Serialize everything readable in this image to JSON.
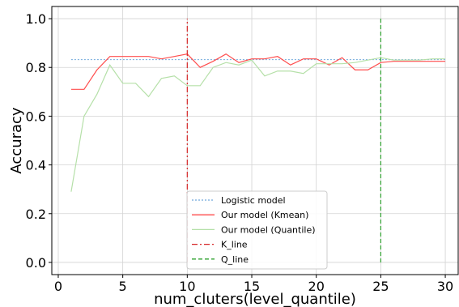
{
  "chart_data": {
    "type": "line",
    "xlabel": "num_cluters(level_quantile)",
    "ylabel": "Accuracy",
    "xlim": [
      -0.5,
      31
    ],
    "ylim": [
      -0.05,
      1.05
    ],
    "xticks": [
      0,
      5,
      10,
      15,
      20,
      25,
      30
    ],
    "yticks": [
      0.0,
      0.2,
      0.4,
      0.6,
      0.8,
      1.0
    ],
    "ytick_labels": [
      "0.0",
      "0.2",
      "0.4",
      "0.6",
      "0.8",
      "1.0"
    ],
    "grid": true,
    "legend_position": "lower center",
    "series": [
      {
        "name": "Logistic model",
        "color": "#6fa8dc",
        "style": "dotted",
        "x": [
          1,
          30
        ],
        "y": [
          0.832,
          0.832
        ]
      },
      {
        "name": "Our model (Kmean)",
        "color": "#ff4d4d",
        "style": "solid",
        "x": [
          1,
          2,
          3,
          4,
          5,
          6,
          7,
          8,
          9,
          10,
          11,
          12,
          13,
          14,
          15,
          16,
          17,
          18,
          19,
          20,
          21,
          22,
          23,
          24,
          25,
          26,
          27,
          28,
          29,
          30
        ],
        "y": [
          0.71,
          0.71,
          0.79,
          0.845,
          0.845,
          0.845,
          0.845,
          0.835,
          0.845,
          0.855,
          0.8,
          0.825,
          0.855,
          0.82,
          0.835,
          0.835,
          0.845,
          0.81,
          0.835,
          0.835,
          0.81,
          0.84,
          0.79,
          0.79,
          0.82,
          0.825,
          0.825,
          0.825,
          0.825,
          0.825
        ]
      },
      {
        "name": "Our model (Quantile)",
        "color": "#b5e0a8",
        "style": "solid",
        "x": [
          1,
          2,
          3,
          4,
          5,
          6,
          7,
          8,
          9,
          10,
          11,
          12,
          13,
          14,
          15,
          16,
          17,
          18,
          19,
          20,
          21,
          22,
          23,
          24,
          25,
          26,
          27,
          28,
          29,
          30
        ],
        "y": [
          0.29,
          0.6,
          0.69,
          0.81,
          0.735,
          0.735,
          0.68,
          0.755,
          0.765,
          0.725,
          0.725,
          0.8,
          0.82,
          0.81,
          0.83,
          0.765,
          0.785,
          0.785,
          0.775,
          0.815,
          0.815,
          0.815,
          0.82,
          0.83,
          0.84,
          0.83,
          0.83,
          0.83,
          0.835,
          0.835
        ]
      },
      {
        "name": "K_line",
        "color": "#d62728",
        "style": "dashdot",
        "x": [
          10,
          10
        ],
        "y": [
          0.0,
          1.0
        ]
      },
      {
        "name": "Q_line",
        "color": "#2ca02c",
        "style": "dashed",
        "x": [
          25,
          25
        ],
        "y": [
          0.0,
          1.0
        ]
      }
    ]
  }
}
